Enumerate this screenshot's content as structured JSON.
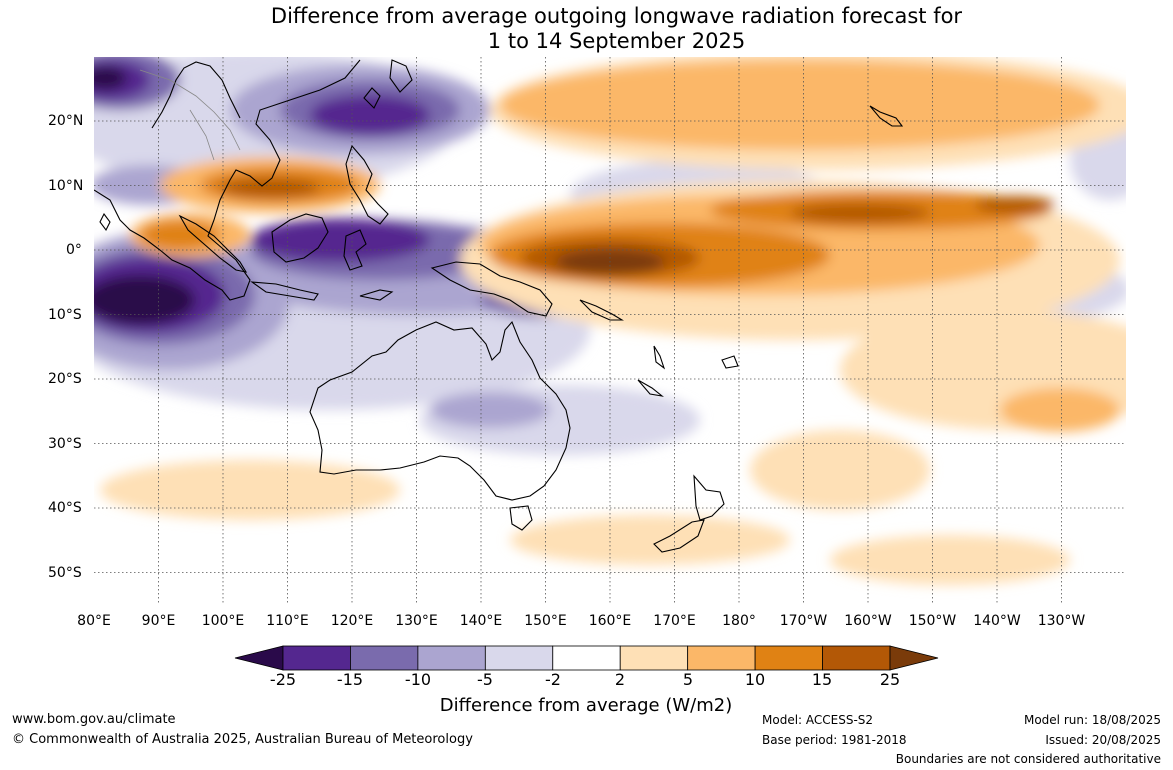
{
  "title": {
    "line1": "Difference from average outgoing longwave radiation forecast for",
    "line2": "1 to 14 September 2025"
  },
  "map": {
    "lon_labels": [
      "80°E",
      "90°E",
      "100°E",
      "110°E",
      "120°E",
      "130°E",
      "140°E",
      "150°E",
      "160°E",
      "170°E",
      "180°",
      "170°W",
      "160°W",
      "150°W",
      "140°W",
      "130°W"
    ],
    "lat_labels": [
      "20°N",
      "10°N",
      "0°",
      "10°S",
      "20°S",
      "30°S",
      "40°S",
      "50°S"
    ],
    "extent": {
      "lon": [
        80,
        240
      ],
      "lat": [
        -55,
        30
      ]
    },
    "gridlines": "dotted",
    "coastlines": true
  },
  "legend": {
    "boundaries": [
      "-25",
      "-15",
      "-10",
      "-5",
      "-2",
      "2",
      "5",
      "10",
      "15",
      "25"
    ],
    "colors": [
      "#2a0a4a",
      "#54278f",
      "#7a6bad",
      "#aba5d0",
      "#d9d8eb",
      "#ffffff",
      "#fee0b6",
      "#fbb768",
      "#e08214",
      "#b35806",
      "#7a3b0a"
    ],
    "units_label": "Difference from average (W/m2)"
  },
  "footer": {
    "url": "www.bom.gov.au/climate",
    "copyright": "© Commonwealth of Australia 2025, Australian Bureau of Meteorology",
    "model": "Model: ACCESS-S2",
    "base_period": "Base period: 1981-2018",
    "model_run": "Model run: 18/08/2025",
    "issued": "Issued: 20/08/2025",
    "disclaimer": "Boundaries are not considered authoritative"
  }
}
